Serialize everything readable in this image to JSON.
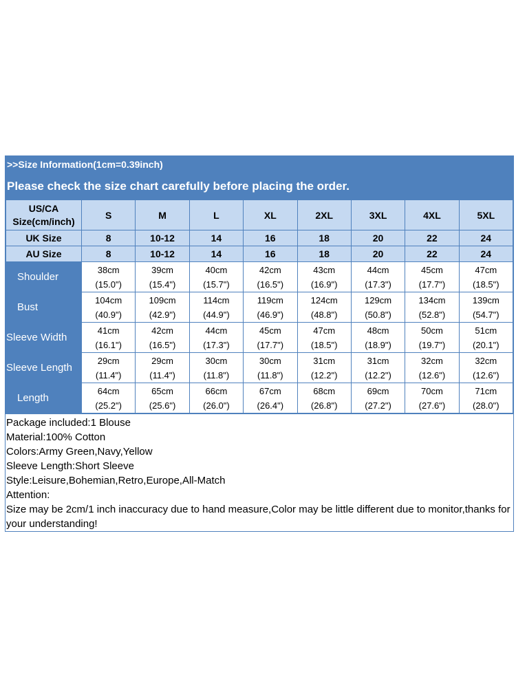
{
  "header": {
    "info_line": ">>Size Information(1cm=0.39inch)",
    "notice": "Please check the size chart carefully before placing the order."
  },
  "size_table": {
    "corner_line1": "US/CA",
    "corner_line2": "Size(cm/inch)",
    "sizes": [
      "S",
      "M",
      "L",
      "XL",
      "2XL",
      "3XL",
      "4XL",
      "5XL"
    ],
    "uk_label": "UK Size",
    "uk_sizes": [
      "8",
      "10-12",
      "14",
      "16",
      "18",
      "20",
      "22",
      "24"
    ],
    "au_label": "AU Size",
    "au_sizes": [
      "8",
      "10-12",
      "14",
      "16",
      "18",
      "20",
      "22",
      "24"
    ],
    "measurements": [
      {
        "label": "Shoulder",
        "cm": [
          "38cm",
          "39cm",
          "40cm",
          "42cm",
          "43cm",
          "44cm",
          "45cm",
          "47cm"
        ],
        "inch": [
          "(15.0\")",
          "(15.4\")",
          "(15.7\")",
          "(16.5\")",
          "(16.9\")",
          "(17.3\")",
          "(17.7\")",
          "(18.5\")"
        ]
      },
      {
        "label": "Bust",
        "cm": [
          "104cm",
          "109cm",
          "114cm",
          "119cm",
          "124cm",
          "129cm",
          "134cm",
          "139cm"
        ],
        "inch": [
          "(40.9\")",
          "(42.9\")",
          "(44.9\")",
          "(46.9\")",
          "(48.8\")",
          "(50.8\")",
          "(52.8\")",
          "(54.7\")"
        ]
      },
      {
        "label": "Sleeve Width",
        "cm": [
          "41cm",
          "42cm",
          "44cm",
          "45cm",
          "47cm",
          "48cm",
          "50cm",
          "51cm"
        ],
        "inch": [
          "(16.1\")",
          "(16.5\")",
          "(17.3\")",
          "(17.7\")",
          "(18.5\")",
          "(18.9\")",
          "(19.7\")",
          "(20.1\")"
        ]
      },
      {
        "label": "Sleeve Length",
        "cm": [
          "29cm",
          "29cm",
          "30cm",
          "30cm",
          "31cm",
          "31cm",
          "32cm",
          "32cm"
        ],
        "inch": [
          "(11.4\")",
          "(11.4\")",
          "(11.8\")",
          "(11.8\")",
          "(12.2\")",
          "(12.2\")",
          "(12.6\")",
          "(12.6\")"
        ]
      },
      {
        "label": "Length",
        "cm": [
          "64cm",
          "65cm",
          "66cm",
          "67cm",
          "68cm",
          "69cm",
          "70cm",
          "71cm"
        ],
        "inch": [
          "(25.2\")",
          "(25.6\")",
          "(26.0\")",
          "(26.4\")",
          "(26.8\")",
          "(27.2\")",
          "(27.6\")",
          "(28.0\")"
        ]
      }
    ]
  },
  "notes": [
    "Package included:1 Blouse",
    "Material:100% Cotton",
    "Colors:Army Green,Navy,Yellow",
    "Sleeve Length:Short Sleeve",
    "Style:Leisure,Bohemian,Retro,Europe,All-Match",
    "Attention:",
    "Size may be 2cm/1 inch inaccuracy due to hand measure,Color may be little different due to monitor,thanks for your understanding!"
  ],
  "colors": {
    "banner": "#4f81bd",
    "header_fill": "#c5d9f1",
    "border": "#4f81bd"
  }
}
